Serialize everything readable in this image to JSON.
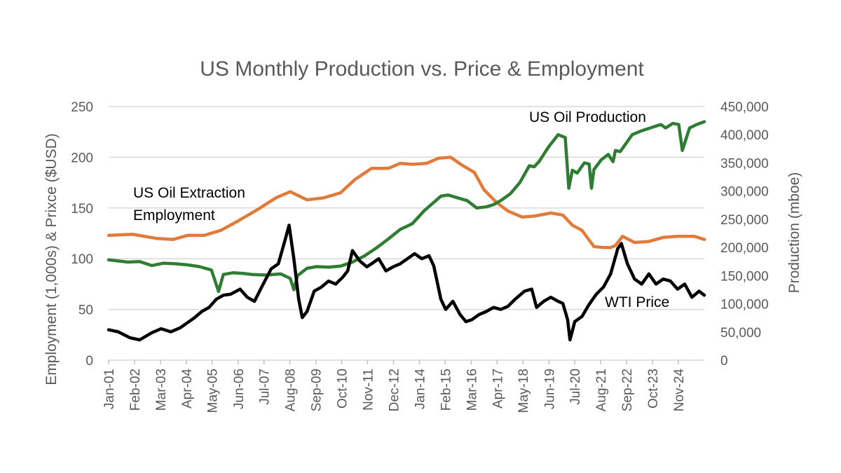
{
  "chart_data": {
    "type": "line",
    "title": "US Monthly Production vs. Price & Employment",
    "ylabel_left": "Employment (1,000s) & Prixce ($USD)",
    "ylabel_right": "Production (mboe)",
    "ylim_left": [
      0,
      250
    ],
    "ylim_right": [
      0,
      450000
    ],
    "yticks_left": [
      {
        "value": 0,
        "label": "0"
      },
      {
        "value": 50,
        "label": "50"
      },
      {
        "value": 100,
        "label": "100"
      },
      {
        "value": 150,
        "label": "150"
      },
      {
        "value": 200,
        "label": "200"
      },
      {
        "value": 250,
        "label": "250"
      }
    ],
    "yticks_right": [
      {
        "value": 0,
        "label": "0"
      },
      {
        "value": 50000,
        "label": "50,000"
      },
      {
        "value": 100000,
        "label": "100,000"
      },
      {
        "value": 150000,
        "label": "150,000"
      },
      {
        "value": 200000,
        "label": "200,000"
      },
      {
        "value": 250000,
        "label": "250,000"
      },
      {
        "value": 300000,
        "label": "300,000"
      },
      {
        "value": 350000,
        "label": "350,000"
      },
      {
        "value": 400000,
        "label": "400,000"
      },
      {
        "value": 450000,
        "label": "450,000"
      }
    ],
    "xlim": [
      2001.0,
      2025.92
    ],
    "xticks": [
      {
        "value": 2001.0,
        "label": "Jan-01"
      },
      {
        "value": 2002.08,
        "label": "Feb-02"
      },
      {
        "value": 2003.17,
        "label": "Mar-03"
      },
      {
        "value": 2004.25,
        "label": "Apr-04"
      },
      {
        "value": 2005.33,
        "label": "May-05"
      },
      {
        "value": 2006.42,
        "label": "Jun-06"
      },
      {
        "value": 2007.5,
        "label": "Jul-07"
      },
      {
        "value": 2008.58,
        "label": "Aug-08"
      },
      {
        "value": 2009.67,
        "label": "Sep-09"
      },
      {
        "value": 2010.75,
        "label": "Oct-10"
      },
      {
        "value": 2011.83,
        "label": "Nov-11"
      },
      {
        "value": 2012.92,
        "label": "Dec-12"
      },
      {
        "value": 2014.0,
        "label": "Jan-14"
      },
      {
        "value": 2015.08,
        "label": "Feb-15"
      },
      {
        "value": 2016.17,
        "label": "Mar-16"
      },
      {
        "value": 2017.25,
        "label": "Apr-17"
      },
      {
        "value": 2018.33,
        "label": "May-18"
      },
      {
        "value": 2019.42,
        "label": "Jun-19"
      },
      {
        "value": 2020.5,
        "label": "Jul-20"
      },
      {
        "value": 2021.58,
        "label": "Aug-21"
      },
      {
        "value": 2022.67,
        "label": "Sep-22"
      },
      {
        "value": 2023.75,
        "label": "Oct-23"
      },
      {
        "value": 2024.83,
        "label": "Nov-24"
      }
    ],
    "legend": "none",
    "annotations": [
      {
        "series": "employment",
        "lines": [
          "US Oil Extraction",
          "Employment"
        ]
      },
      {
        "series": "production",
        "lines": [
          "US Oil Production"
        ]
      },
      {
        "series": "wti",
        "lines": [
          "WTI Price"
        ]
      }
    ],
    "series": [
      {
        "name": "US Oil Extraction Employment",
        "key": "employment",
        "axis": "left",
        "color": "#e07b39",
        "x": [
          2001.0,
          2002.0,
          2003.0,
          2003.7,
          2004.3,
          2005.0,
          2005.7,
          2006.4,
          2007.2,
          2008.0,
          2008.6,
          2009.3,
          2010.0,
          2010.7,
          2011.3,
          2012.0,
          2012.7,
          2013.2,
          2013.7,
          2014.3,
          2014.8,
          2015.3,
          2015.8,
          2016.3,
          2016.7,
          2017.2,
          2017.7,
          2018.3,
          2018.8,
          2019.5,
          2020.0,
          2020.4,
          2020.8,
          2021.3,
          2021.7,
          2022.0,
          2022.2,
          2022.5,
          2023.0,
          2023.6,
          2024.2,
          2024.8,
          2025.5,
          2025.92
        ],
        "values": [
          123,
          124,
          120,
          119,
          123,
          123,
          128,
          137,
          148,
          160,
          166,
          158,
          160,
          165,
          178,
          189,
          189,
          194,
          193,
          194,
          199,
          200,
          192,
          185,
          168,
          156,
          147,
          141,
          142,
          145,
          143,
          133,
          128,
          112,
          111,
          111,
          113,
          122,
          116,
          117,
          121,
          122,
          122,
          119
        ]
      },
      {
        "name": "US Oil Production",
        "key": "production",
        "axis": "right",
        "color": "#2f7d32",
        "x": [
          2001.0,
          2001.4,
          2001.8,
          2002.3,
          2002.8,
          2003.3,
          2003.8,
          2004.3,
          2004.8,
          2005.3,
          2005.6,
          2005.8,
          2006.2,
          2006.6,
          2007.0,
          2007.6,
          2008.2,
          2008.6,
          2008.75,
          2008.9,
          2009.3,
          2009.7,
          2010.2,
          2010.7,
          2011.2,
          2011.7,
          2012.2,
          2012.7,
          2013.2,
          2013.7,
          2014.2,
          2014.6,
          2014.9,
          2015.2,
          2015.6,
          2016.0,
          2016.4,
          2016.8,
          2017.1,
          2017.4,
          2017.8,
          2018.2,
          2018.6,
          2018.8,
          2019.0,
          2019.4,
          2019.8,
          2020.1,
          2020.25,
          2020.4,
          2020.6,
          2020.9,
          2021.1,
          2021.2,
          2021.3,
          2021.6,
          2021.9,
          2022.1,
          2022.2,
          2022.4,
          2022.7,
          2022.9,
          2023.3,
          2023.8,
          2024.1,
          2024.3,
          2024.6,
          2024.85,
          2025.0,
          2025.3,
          2025.6,
          2025.92
        ],
        "values": [
          178000,
          176000,
          174000,
          175000,
          168000,
          172000,
          171000,
          169000,
          166000,
          160000,
          122000,
          152000,
          155000,
          154000,
          152000,
          151000,
          153000,
          145000,
          125000,
          150000,
          163000,
          166000,
          165000,
          167000,
          174000,
          185000,
          199000,
          215000,
          232000,
          242000,
          265000,
          280000,
          291000,
          293000,
          288000,
          283000,
          270000,
          272000,
          276000,
          283000,
          295000,
          315000,
          345000,
          343000,
          352000,
          378000,
          400000,
          395000,
          305000,
          337000,
          332000,
          350000,
          348000,
          305000,
          338000,
          355000,
          365000,
          352000,
          372000,
          370000,
          388000,
          400000,
          407000,
          414000,
          418000,
          412000,
          420000,
          418000,
          372000,
          412000,
          418000,
          423000
        ]
      },
      {
        "name": "WTI Price",
        "key": "wti",
        "axis": "left",
        "color": "#000000",
        "x": [
          2001.0,
          2001.4,
          2001.9,
          2002.3,
          2002.8,
          2003.2,
          2003.6,
          2004.0,
          2004.3,
          2004.6,
          2004.9,
          2005.2,
          2005.5,
          2005.8,
          2006.1,
          2006.5,
          2006.8,
          2007.1,
          2007.4,
          2007.8,
          2008.1,
          2008.4,
          2008.55,
          2008.75,
          2008.95,
          2009.1,
          2009.3,
          2009.6,
          2009.9,
          2010.2,
          2010.5,
          2010.8,
          2011.0,
          2011.2,
          2011.5,
          2011.8,
          2012.0,
          2012.3,
          2012.6,
          2012.9,
          2013.2,
          2013.5,
          2013.8,
          2014.1,
          2014.4,
          2014.6,
          2014.9,
          2015.1,
          2015.4,
          2015.7,
          2015.95,
          2016.2,
          2016.5,
          2016.8,
          2017.1,
          2017.4,
          2017.7,
          2018.0,
          2018.4,
          2018.7,
          2018.9,
          2019.2,
          2019.5,
          2019.8,
          2020.0,
          2020.2,
          2020.3,
          2020.5,
          2020.8,
          2021.1,
          2021.4,
          2021.7,
          2022.0,
          2022.3,
          2022.45,
          2022.7,
          2023.0,
          2023.3,
          2023.6,
          2023.9,
          2024.2,
          2024.5,
          2024.8,
          2025.1,
          2025.4,
          2025.7,
          2025.92
        ],
        "values": [
          30,
          28,
          22,
          20,
          27,
          31,
          28,
          32,
          37,
          42,
          48,
          52,
          60,
          64,
          65,
          70,
          62,
          58,
          72,
          90,
          95,
          120,
          133,
          100,
          60,
          42,
          48,
          68,
          72,
          78,
          75,
          82,
          88,
          108,
          98,
          92,
          95,
          100,
          88,
          92,
          95,
          100,
          105,
          100,
          103,
          93,
          60,
          50,
          58,
          45,
          38,
          40,
          45,
          48,
          52,
          50,
          53,
          60,
          68,
          70,
          52,
          58,
          62,
          58,
          56,
          40,
          20,
          38,
          43,
          55,
          65,
          72,
          85,
          110,
          115,
          95,
          80,
          75,
          85,
          75,
          80,
          78,
          70,
          75,
          62,
          68,
          64
        ]
      }
    ]
  }
}
